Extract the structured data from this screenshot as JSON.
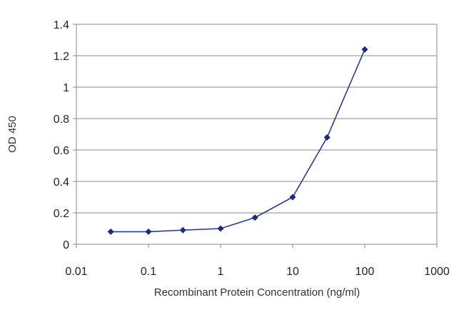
{
  "chart_data": {
    "type": "scatter",
    "xlabel": "Recombinant Protein Concentration (ng/ml)",
    "ylabel": "OD 450",
    "x_scale": "log",
    "xlim": [
      0.01,
      1000
    ],
    "ylim": [
      0,
      1.4
    ],
    "x_ticks": [
      "0.01",
      "0.1",
      "1",
      "10",
      "100",
      "1000"
    ],
    "y_ticks": [
      "0",
      "0.2",
      "0.4",
      "0.6",
      "0.8",
      "1",
      "1.2",
      "1.4"
    ],
    "grid": "horizontal",
    "legend": "none",
    "color": "#2b3a8c",
    "series": [
      {
        "x": [
          0.03,
          0.1,
          0.3,
          1,
          3,
          10,
          30,
          100
        ],
        "y": [
          0.08,
          0.08,
          0.09,
          0.1,
          0.17,
          0.3,
          0.68,
          1.24
        ]
      }
    ]
  }
}
